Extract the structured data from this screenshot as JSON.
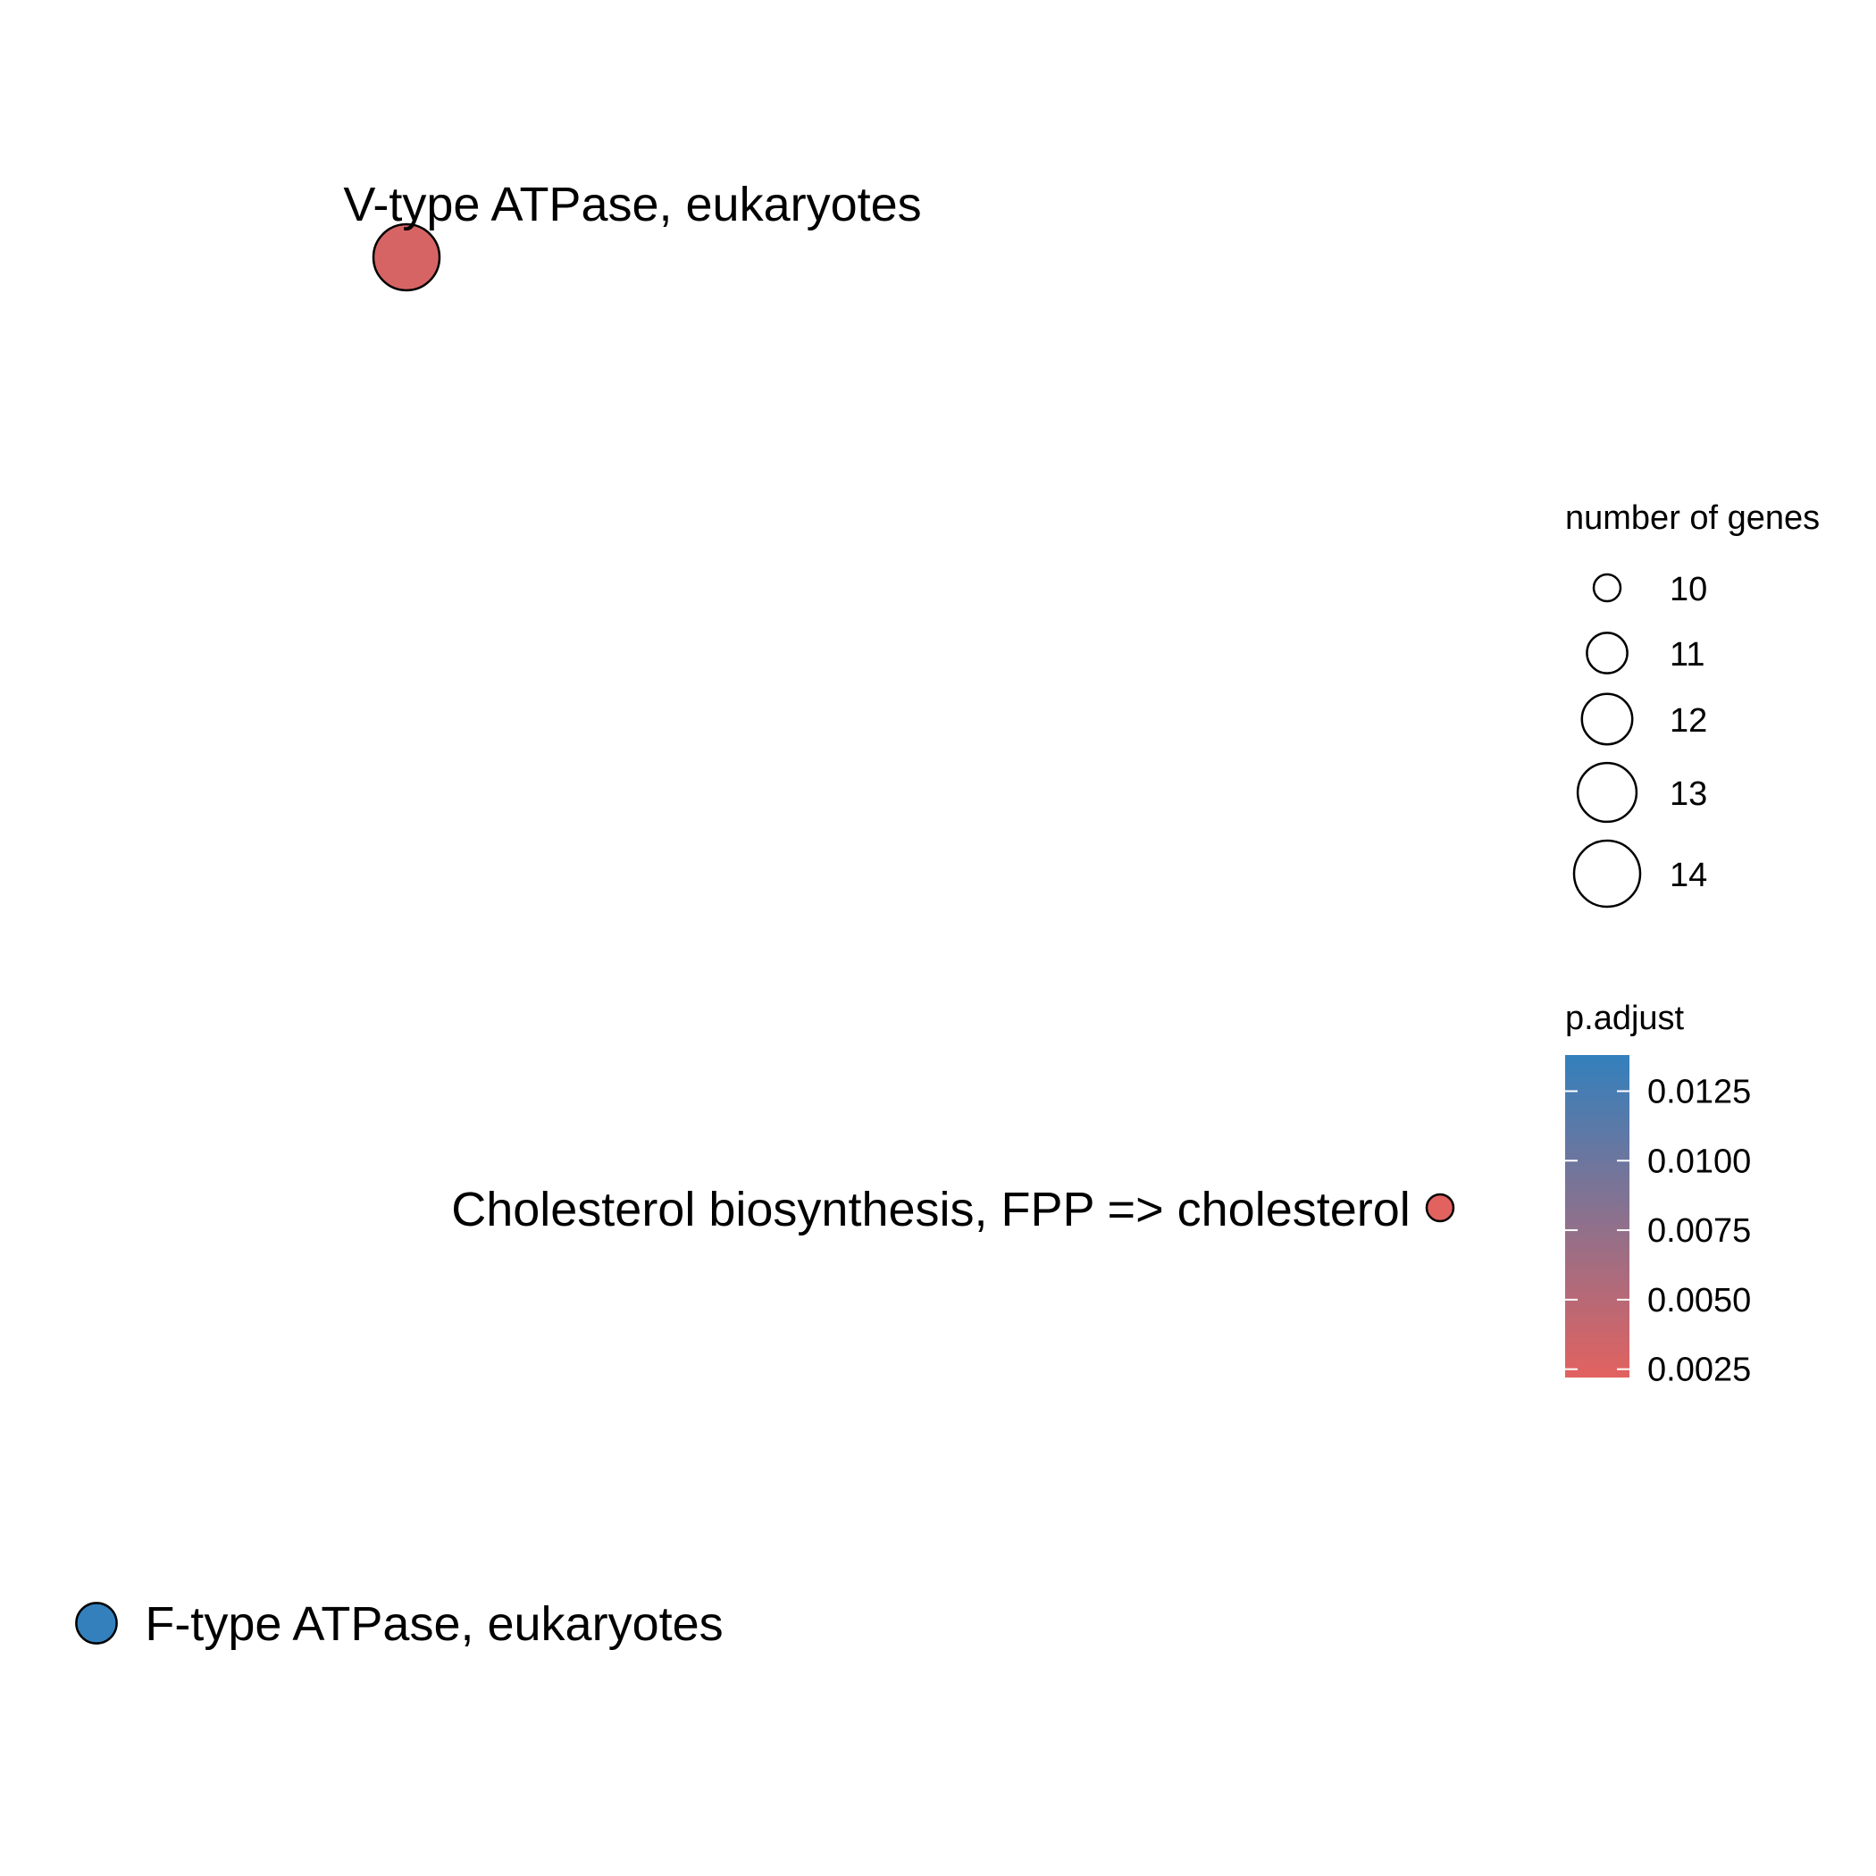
{
  "chart_data": {
    "type": "scatter",
    "nodes": [
      {
        "label": "V-type ATPase, eukaryotes",
        "size": 14,
        "p_adjust": 0.0029
      },
      {
        "label": "Cholesterol biosynthesis, FPP => cholesterol",
        "size": 10,
        "p_adjust": 0.0022
      },
      {
        "label": "F-type ATPase, eukaryotes",
        "size": 11,
        "p_adjust": 0.0138
      }
    ],
    "size_legend": {
      "title": "number of genes",
      "values": [
        10,
        11,
        12,
        13,
        14
      ],
      "labels": [
        "10",
        "11",
        "12",
        "13",
        "14"
      ]
    },
    "color_legend": {
      "title": "p.adjust",
      "range": [
        0.0022,
        0.0138
      ],
      "breaks": [
        0.0125,
        0.01,
        0.0075,
        0.005,
        0.0025
      ],
      "labels": [
        "0.0125",
        "0.0100",
        "0.0075",
        "0.0050",
        "0.0025"
      ],
      "low_color": "#e2625f",
      "high_color": "#3380bd"
    },
    "point_outline_color": "#000000",
    "grid": false,
    "axes": false,
    "legend_position": "right"
  }
}
